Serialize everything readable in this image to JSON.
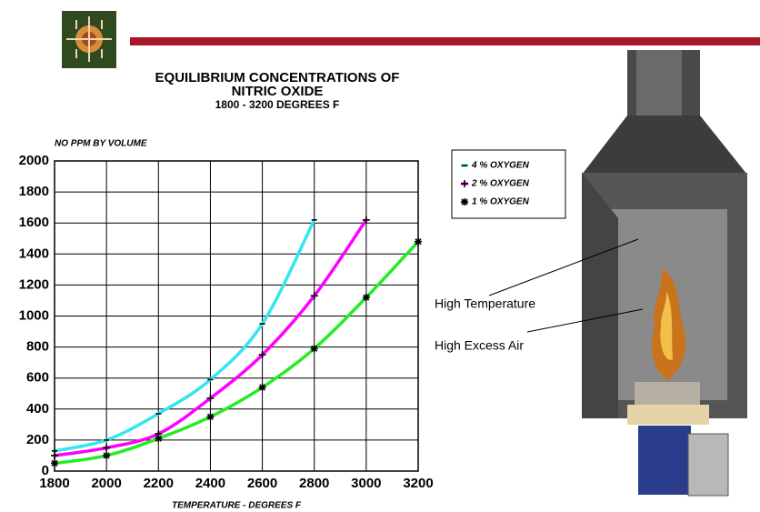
{
  "chart_data": {
    "type": "line",
    "title": [
      "EQUILIBRIUM CONCENTRATIONS OF",
      "NITRIC OXIDE"
    ],
    "subtitle": "1800 - 3200 DEGREES F",
    "y_label": "NO PPM BY VOLUME",
    "x_label": "TEMPERATURE - DEGREES F",
    "x": [
      1800,
      2000,
      2200,
      2400,
      2600,
      2800,
      3000,
      3200
    ],
    "series": [
      {
        "name": "4 % OXYGEN",
        "color": "#33e6f0",
        "marker": "dash",
        "values": [
          130,
          200,
          370,
          590,
          950,
          1620,
          null,
          null
        ]
      },
      {
        "name": "2 % OXYGEN",
        "color": "#ff00ff",
        "marker": "plus",
        "values": [
          100,
          150,
          240,
          470,
          750,
          1130,
          1620,
          null
        ]
      },
      {
        "name": "1 % OXYGEN",
        "color": "#22ee22",
        "marker": "star",
        "values": [
          50,
          100,
          210,
          350,
          540,
          790,
          1120,
          1480
        ]
      }
    ],
    "xlim": [
      1800,
      3200
    ],
    "xticks": [
      1800,
      2000,
      2200,
      2400,
      2600,
      2800,
      3000,
      3200
    ],
    "ylim": [
      0,
      2000
    ],
    "yticks": [
      0,
      200,
      400,
      600,
      800,
      1000,
      1200,
      1400,
      1600,
      1800,
      2000
    ],
    "grid": true,
    "annotations": [
      "High Temperature",
      "High Excess Air"
    ]
  }
}
